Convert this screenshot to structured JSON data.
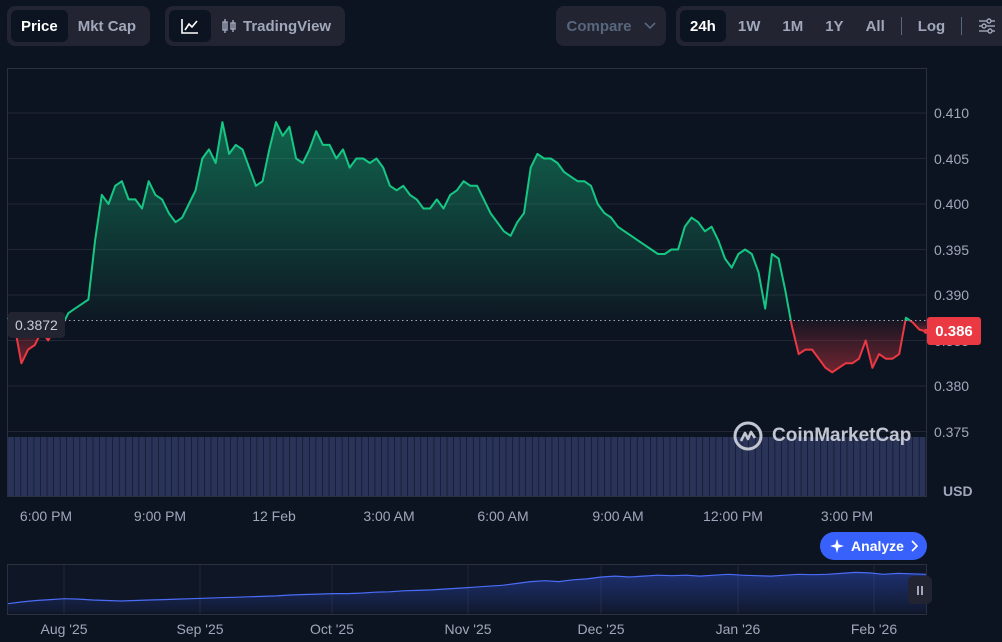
{
  "toolbar": {
    "view_tabs": [
      "Price",
      "Mkt Cap"
    ],
    "active_view": "Price",
    "chart_style_icon": "line-chart-icon",
    "tradingview_label": "TradingView",
    "compare_label": "Compare",
    "ranges": [
      "24h",
      "1W",
      "1M",
      "1Y",
      "All"
    ],
    "active_range": "24h",
    "log_label": "Log",
    "settings_icon": "sliders-icon"
  },
  "chart_data": {
    "type": "line",
    "currency": "USD",
    "open_price": 0.3872,
    "current_price_label": "0.386",
    "open_price_label": "0.3872",
    "y_ticks": [
      "0.410",
      "0.405",
      "0.400",
      "0.395",
      "0.390",
      "0.385",
      "0.380",
      "0.375"
    ],
    "y_label": "USD",
    "ylim": [
      0.375,
      0.4115
    ],
    "x_ticks": [
      "6:00 PM",
      "9:00 PM",
      "12 Feb",
      "3:00 AM",
      "6:00 AM",
      "9:00 AM",
      "12:00 PM",
      "3:00 PM"
    ],
    "series": [
      {
        "values": [
          0.3875,
          0.3865,
          0.3825,
          0.384,
          0.3845,
          0.386,
          0.385,
          0.3865,
          0.3865,
          0.388,
          0.3885,
          0.389,
          0.3895,
          0.396,
          0.401,
          0.4,
          0.402,
          0.4025,
          0.4005,
          0.4005,
          0.3995,
          0.4025,
          0.401,
          0.4005,
          0.399,
          0.398,
          0.3985,
          0.4,
          0.4015,
          0.405,
          0.406,
          0.4045,
          0.409,
          0.4055,
          0.4065,
          0.406,
          0.404,
          0.402,
          0.4025,
          0.406,
          0.409,
          0.4075,
          0.4085,
          0.405,
          0.4045,
          0.406,
          0.408,
          0.4065,
          0.4065,
          0.405,
          0.406,
          0.404,
          0.405,
          0.405,
          0.4045,
          0.405,
          0.404,
          0.402,
          0.4015,
          0.402,
          0.401,
          0.4005,
          0.3995,
          0.3995,
          0.4005,
          0.3995,
          0.401,
          0.4015,
          0.4025,
          0.402,
          0.402,
          0.4005,
          0.399,
          0.398,
          0.397,
          0.3965,
          0.398,
          0.399,
          0.404,
          0.4055,
          0.405,
          0.405,
          0.4045,
          0.4035,
          0.403,
          0.4025,
          0.4025,
          0.402,
          0.4,
          0.399,
          0.3985,
          0.3975,
          0.397,
          0.3965,
          0.396,
          0.3955,
          0.395,
          0.3945,
          0.3945,
          0.395,
          0.395,
          0.3975,
          0.3985,
          0.398,
          0.397,
          0.3975,
          0.396,
          0.394,
          0.393,
          0.3945,
          0.395,
          0.3945,
          0.3925,
          0.3885,
          0.3945,
          0.394,
          0.3905,
          0.3865,
          0.3835,
          0.384,
          0.384,
          0.383,
          0.382,
          0.3815,
          0.382,
          0.3825,
          0.3825,
          0.383,
          0.385,
          0.382,
          0.3835,
          0.383,
          0.383,
          0.3835,
          0.3875,
          0.387,
          0.3862,
          0.386
        ]
      }
    ],
    "volume_bar_count": 140,
    "navigator": {
      "x_ticks": [
        "Aug '25",
        "Sep '25",
        "Oct '25",
        "Nov '25",
        "Dec '25",
        "Jan '26",
        "Feb '26"
      ],
      "values": [
        0.18,
        0.22,
        0.25,
        0.27,
        0.29,
        0.28,
        0.26,
        0.25,
        0.24,
        0.25,
        0.26,
        0.27,
        0.28,
        0.29,
        0.3,
        0.31,
        0.32,
        0.33,
        0.34,
        0.35,
        0.37,
        0.38,
        0.39,
        0.4,
        0.4,
        0.41,
        0.43,
        0.44,
        0.46,
        0.47,
        0.48,
        0.5,
        0.52,
        0.54,
        0.56,
        0.58,
        0.62,
        0.66,
        0.68,
        0.66,
        0.7,
        0.72,
        0.76,
        0.78,
        0.76,
        0.78,
        0.8,
        0.79,
        0.8,
        0.78,
        0.8,
        0.82,
        0.8,
        0.79,
        0.78,
        0.8,
        0.82,
        0.81,
        0.82,
        0.84,
        0.86,
        0.85,
        0.82,
        0.84,
        0.83,
        0.82
      ]
    }
  },
  "overlay": {
    "watermark": "CoinMarketCap",
    "analyze_label": "Analyze"
  },
  "colors": {
    "background": "#0d1421",
    "up": "#16c784",
    "down": "#ea3943",
    "accent": "#3861fb"
  }
}
